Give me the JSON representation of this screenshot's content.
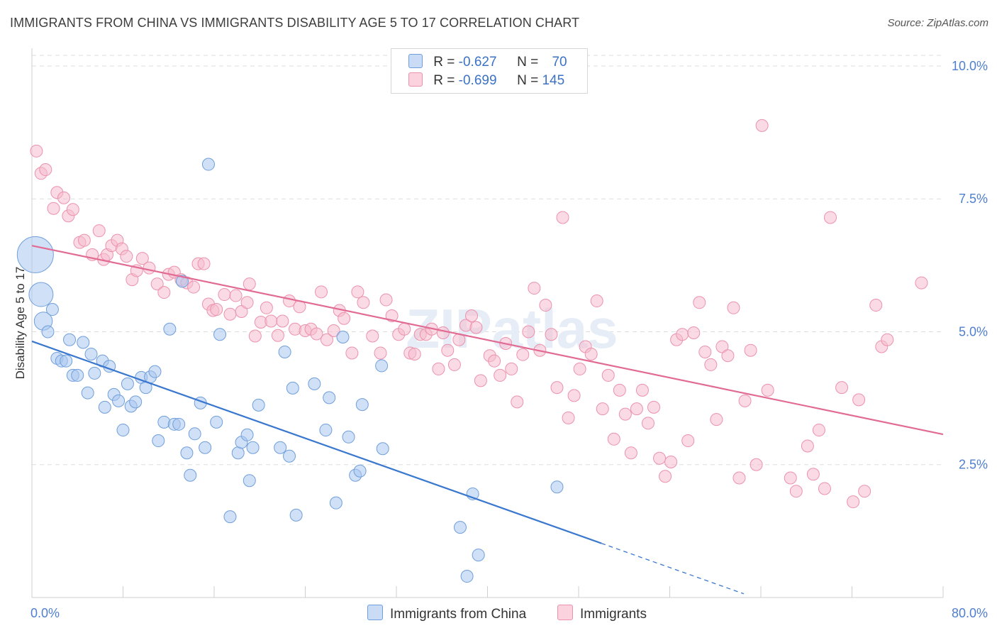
{
  "header": {
    "title": "IMMIGRANTS FROM CHINA VS IMMIGRANTS DISABILITY AGE 5 TO 17 CORRELATION CHART",
    "source": "Source: ZipAtlas.com"
  },
  "legend": {
    "rows": [
      {
        "r_label": "R = ",
        "r_value": "-0.627",
        "n_label": "N = ",
        "n_value": "70"
      },
      {
        "r_label": "R = ",
        "r_value": "-0.699",
        "n_label": "N = ",
        "n_value": "145"
      }
    ]
  },
  "colors": {
    "china_fill": "#a9c7ef",
    "china_stroke": "#6f9fdb",
    "china_line": "#3a78cf",
    "imm_fill": "#f6bccd",
    "imm_stroke": "#ec92ad",
    "imm_line": "#e26b94",
    "tick_label": "#4f7fcf",
    "grid": "#dddddd"
  },
  "chart_data": {
    "type": "scatter",
    "title": "IMMIGRANTS FROM CHINA VS IMMIGRANTS DISABILITY AGE 5 TO 17 CORRELATION CHART",
    "ylabel": "Disability Age 5 to 17",
    "xlabel": "",
    "xlim": [
      0,
      80
    ],
    "ylim": [
      0,
      10.2
    ],
    "x_tick_labels": [
      "0.0%",
      "80.0%"
    ],
    "y_ticks": [
      2.5,
      5.0,
      7.5,
      10.0
    ],
    "y_tick_labels": [
      "2.5%",
      "5.0%",
      "7.5%",
      "10.0%"
    ],
    "grid": true,
    "watermark": "ZIPatlas",
    "series": [
      {
        "name": "Immigrants from China",
        "trend": {
          "x0": 0,
          "y0": 4.82,
          "x1": 50,
          "y1": 1.02,
          "dashed_to_x": 62.5
        },
        "points": [
          [
            0.3,
            6.45,
            3
          ],
          [
            0.8,
            5.7,
            2
          ],
          [
            1,
            5.2,
            1.5
          ],
          [
            1.4,
            5.0,
            1
          ],
          [
            1.8,
            5.42,
            1
          ],
          [
            2.2,
            4.5,
            1
          ],
          [
            2.6,
            4.45,
            1
          ],
          [
            3,
            4.45,
            1
          ],
          [
            3.3,
            4.85,
            1
          ],
          [
            3.6,
            4.18,
            1
          ],
          [
            4,
            4.18,
            1
          ],
          [
            4.5,
            4.8,
            1
          ],
          [
            4.9,
            3.85,
            1
          ],
          [
            5.2,
            4.58,
            1
          ],
          [
            5.5,
            4.22,
            1
          ],
          [
            6.2,
            4.45,
            1
          ],
          [
            6.4,
            3.58,
            1
          ],
          [
            6.8,
            4.35,
            1
          ],
          [
            7.2,
            3.82,
            1
          ],
          [
            7.6,
            3.7,
            1
          ],
          [
            8.0,
            3.15,
            1
          ],
          [
            8.4,
            4.02,
            1
          ],
          [
            8.7,
            3.6,
            1
          ],
          [
            9.1,
            3.68,
            1
          ],
          [
            9.6,
            4.14,
            1
          ],
          [
            10,
            3.95,
            1
          ],
          [
            10.4,
            4.15,
            1
          ],
          [
            10.8,
            4.25,
            1
          ],
          [
            11.1,
            2.95,
            1
          ],
          [
            11.6,
            3.3,
            1
          ],
          [
            12.1,
            5.05,
            1
          ],
          [
            12.5,
            3.26,
            1
          ],
          [
            12.9,
            3.26,
            1
          ],
          [
            13.2,
            5.95,
            1
          ],
          [
            13.6,
            2.72,
            1
          ],
          [
            13.9,
            2.3,
            1
          ],
          [
            14.3,
            3.08,
            1
          ],
          [
            14.8,
            3.66,
            1
          ],
          [
            15.2,
            2.82,
            1
          ],
          [
            15.5,
            8.15,
            1
          ],
          [
            16.2,
            3.3,
            1
          ],
          [
            16.5,
            4.95,
            1
          ],
          [
            17.4,
            1.52,
            1
          ],
          [
            18.1,
            2.72,
            1
          ],
          [
            18.4,
            2.92,
            1
          ],
          [
            18.9,
            3.06,
            1
          ],
          [
            19.1,
            2.2,
            1
          ],
          [
            19.4,
            2.82,
            1
          ],
          [
            19.9,
            3.62,
            1
          ],
          [
            21.8,
            2.82,
            1
          ],
          [
            22.2,
            4.62,
            1
          ],
          [
            22.6,
            2.66,
            1
          ],
          [
            22.9,
            3.94,
            1
          ],
          [
            23.2,
            1.55,
            1
          ],
          [
            24.8,
            4.02,
            1
          ],
          [
            25.8,
            3.15,
            1
          ],
          [
            26.1,
            3.76,
            1
          ],
          [
            26.7,
            1.78,
            1
          ],
          [
            27.3,
            4.9,
            1
          ],
          [
            27.8,
            3.02,
            1
          ],
          [
            28.4,
            2.3,
            1
          ],
          [
            28.8,
            2.38,
            1
          ],
          [
            29,
            3.63,
            1
          ],
          [
            30.7,
            4.36,
            1
          ],
          [
            30.8,
            2.8,
            1
          ],
          [
            37.6,
            1.32,
            1
          ],
          [
            38.2,
            0.4,
            1
          ],
          [
            38.7,
            1.95,
            1
          ],
          [
            39.2,
            0.8,
            1
          ],
          [
            46.1,
            2.08,
            1
          ]
        ]
      },
      {
        "name": "Immigrants",
        "trend": {
          "x0": 0,
          "y0": 6.62,
          "x1": 80,
          "y1": 3.07
        },
        "points": [
          [
            0.4,
            8.4,
            1
          ],
          [
            0.8,
            7.98,
            1
          ],
          [
            1.2,
            8.05,
            1
          ],
          [
            1.9,
            7.32,
            1
          ],
          [
            2.2,
            7.62,
            1
          ],
          [
            2.8,
            7.52,
            1
          ],
          [
            3.2,
            7.18,
            1
          ],
          [
            3.6,
            7.3,
            1
          ],
          [
            4.2,
            6.68,
            1
          ],
          [
            4.6,
            6.72,
            1
          ],
          [
            5.3,
            6.45,
            1
          ],
          [
            5.9,
            6.9,
            1
          ],
          [
            6.3,
            6.36,
            1
          ],
          [
            6.6,
            6.45,
            1
          ],
          [
            7.0,
            6.62,
            1
          ],
          [
            7.5,
            6.72,
            1
          ],
          [
            7.9,
            6.56,
            1
          ],
          [
            8.3,
            6.42,
            1
          ],
          [
            8.8,
            5.98,
            1
          ],
          [
            9.2,
            6.15,
            1
          ],
          [
            9.7,
            6.38,
            1
          ],
          [
            10.3,
            6.2,
            1
          ],
          [
            11,
            5.9,
            1
          ],
          [
            11.6,
            5.74,
            1
          ],
          [
            12,
            6.08,
            1
          ],
          [
            12.5,
            6.12,
            1
          ],
          [
            13.1,
            5.98,
            1
          ],
          [
            13.6,
            5.92,
            1
          ],
          [
            14.2,
            5.84,
            1
          ],
          [
            14.6,
            6.28,
            1
          ],
          [
            15.1,
            6.28,
            1
          ],
          [
            15.5,
            5.52,
            1
          ],
          [
            15.9,
            5.4,
            1
          ],
          [
            16.2,
            5.42,
            1
          ],
          [
            16.9,
            5.7,
            1
          ],
          [
            17.4,
            5.33,
            1
          ],
          [
            17.9,
            5.68,
            1
          ],
          [
            18.4,
            5.38,
            1
          ],
          [
            18.9,
            5.55,
            1
          ],
          [
            19.1,
            5.9,
            1
          ],
          [
            19.6,
            4.92,
            1
          ],
          [
            20.1,
            5.18,
            1
          ],
          [
            20.6,
            5.45,
            1
          ],
          [
            21,
            5.2,
            1
          ],
          [
            21.6,
            4.93,
            1
          ],
          [
            22,
            5.2,
            1
          ],
          [
            22.6,
            5.58,
            1
          ],
          [
            23.1,
            5.05,
            1
          ],
          [
            23.5,
            5.47,
            1
          ],
          [
            24,
            5.02,
            1
          ],
          [
            24.5,
            5.05,
            1
          ],
          [
            25,
            4.96,
            1
          ],
          [
            25.4,
            5.75,
            1
          ],
          [
            25.9,
            4.85,
            1
          ],
          [
            26.5,
            5.02,
            1
          ],
          [
            27,
            5.4,
            1
          ],
          [
            27.4,
            5.25,
            1
          ],
          [
            28.1,
            4.6,
            1
          ],
          [
            28.6,
            5.75,
            1
          ],
          [
            29.1,
            5.55,
            1
          ],
          [
            29.9,
            4.92,
            1
          ],
          [
            30.6,
            4.6,
            1
          ],
          [
            31.1,
            5.6,
            1
          ],
          [
            31.6,
            5.3,
            1
          ],
          [
            32.2,
            4.95,
            1
          ],
          [
            32.7,
            5.05,
            1
          ],
          [
            33.2,
            4.6,
            1
          ],
          [
            33.6,
            4.58,
            1
          ],
          [
            34.1,
            4.95,
            1
          ],
          [
            34.6,
            4.95,
            1
          ],
          [
            35.1,
            5.05,
            1
          ],
          [
            35.7,
            4.3,
            1
          ],
          [
            36.1,
            4.98,
            1
          ],
          [
            36.5,
            4.65,
            1
          ],
          [
            37.1,
            4.38,
            1
          ],
          [
            37.5,
            4.85,
            1
          ],
          [
            38.1,
            5.12,
            1
          ],
          [
            38.6,
            5.3,
            1
          ],
          [
            39,
            5.08,
            1
          ],
          [
            39.4,
            4.08,
            1
          ],
          [
            40.2,
            4.55,
            1
          ],
          [
            40.6,
            4.45,
            1
          ],
          [
            41.1,
            4.18,
            1
          ],
          [
            41.6,
            4.78,
            1
          ],
          [
            42.1,
            4.3,
            1
          ],
          [
            42.6,
            3.68,
            1
          ],
          [
            43.1,
            4.57,
            1
          ],
          [
            43.6,
            5.0,
            1
          ],
          [
            44.1,
            5.82,
            1
          ],
          [
            44.6,
            4.65,
            1
          ],
          [
            45.1,
            5.5,
            1
          ],
          [
            45.6,
            4.95,
            1
          ],
          [
            46.1,
            3.95,
            1
          ],
          [
            46.6,
            7.15,
            1
          ],
          [
            47.1,
            3.38,
            1
          ],
          [
            47.6,
            3.8,
            1
          ],
          [
            48.1,
            4.3,
            1
          ],
          [
            48.6,
            4.72,
            1
          ],
          [
            49.1,
            4.58,
            1
          ],
          [
            49.6,
            5.58,
            1
          ],
          [
            50.1,
            3.55,
            1
          ],
          [
            50.6,
            4.18,
            1
          ],
          [
            51.1,
            2.98,
            1
          ],
          [
            51.6,
            3.9,
            1
          ],
          [
            52.1,
            3.45,
            1
          ],
          [
            52.6,
            2.72,
            1
          ],
          [
            53.1,
            3.55,
            1
          ],
          [
            53.6,
            3.9,
            1
          ],
          [
            54.1,
            3.28,
            1
          ],
          [
            54.6,
            3.58,
            1
          ],
          [
            55.1,
            2.62,
            1
          ],
          [
            55.6,
            2.28,
            1
          ],
          [
            56.1,
            2.55,
            1
          ],
          [
            56.6,
            4.85,
            1
          ],
          [
            57.1,
            4.95,
            1
          ],
          [
            57.6,
            2.95,
            1
          ],
          [
            58.1,
            4.98,
            1
          ],
          [
            58.6,
            5.55,
            1
          ],
          [
            59.1,
            4.62,
            1
          ],
          [
            59.6,
            4.38,
            1
          ],
          [
            60.1,
            3.35,
            1
          ],
          [
            60.6,
            4.72,
            1
          ],
          [
            61.1,
            4.55,
            1
          ],
          [
            61.6,
            5.45,
            1
          ],
          [
            62.1,
            2.25,
            1
          ],
          [
            62.6,
            3.7,
            1
          ],
          [
            63.1,
            4.65,
            1
          ],
          [
            63.6,
            2.5,
            1
          ],
          [
            64.1,
            8.88,
            1
          ],
          [
            64.6,
            3.9,
            1
          ],
          [
            67.1,
            2.0,
            1
          ],
          [
            68.1,
            2.85,
            1
          ],
          [
            68.6,
            2.32,
            1
          ],
          [
            69.1,
            3.15,
            1
          ],
          [
            69.6,
            2.05,
            1
          ],
          [
            70.1,
            7.15,
            1
          ],
          [
            72.1,
            1.8,
            1
          ],
          [
            72.6,
            3.72,
            1
          ],
          [
            73.1,
            2.0,
            1
          ],
          [
            74.1,
            5.5,
            1
          ],
          [
            74.6,
            4.72,
            1
          ],
          [
            75.1,
            4.85,
            1
          ],
          [
            78.1,
            5.92,
            1
          ],
          [
            66.6,
            2.25,
            1
          ],
          [
            71.1,
            3.95,
            1
          ]
        ]
      }
    ]
  },
  "bottom_legend": {
    "items": [
      {
        "label": "Immigrants from China"
      },
      {
        "label": "Immigrants"
      }
    ]
  }
}
